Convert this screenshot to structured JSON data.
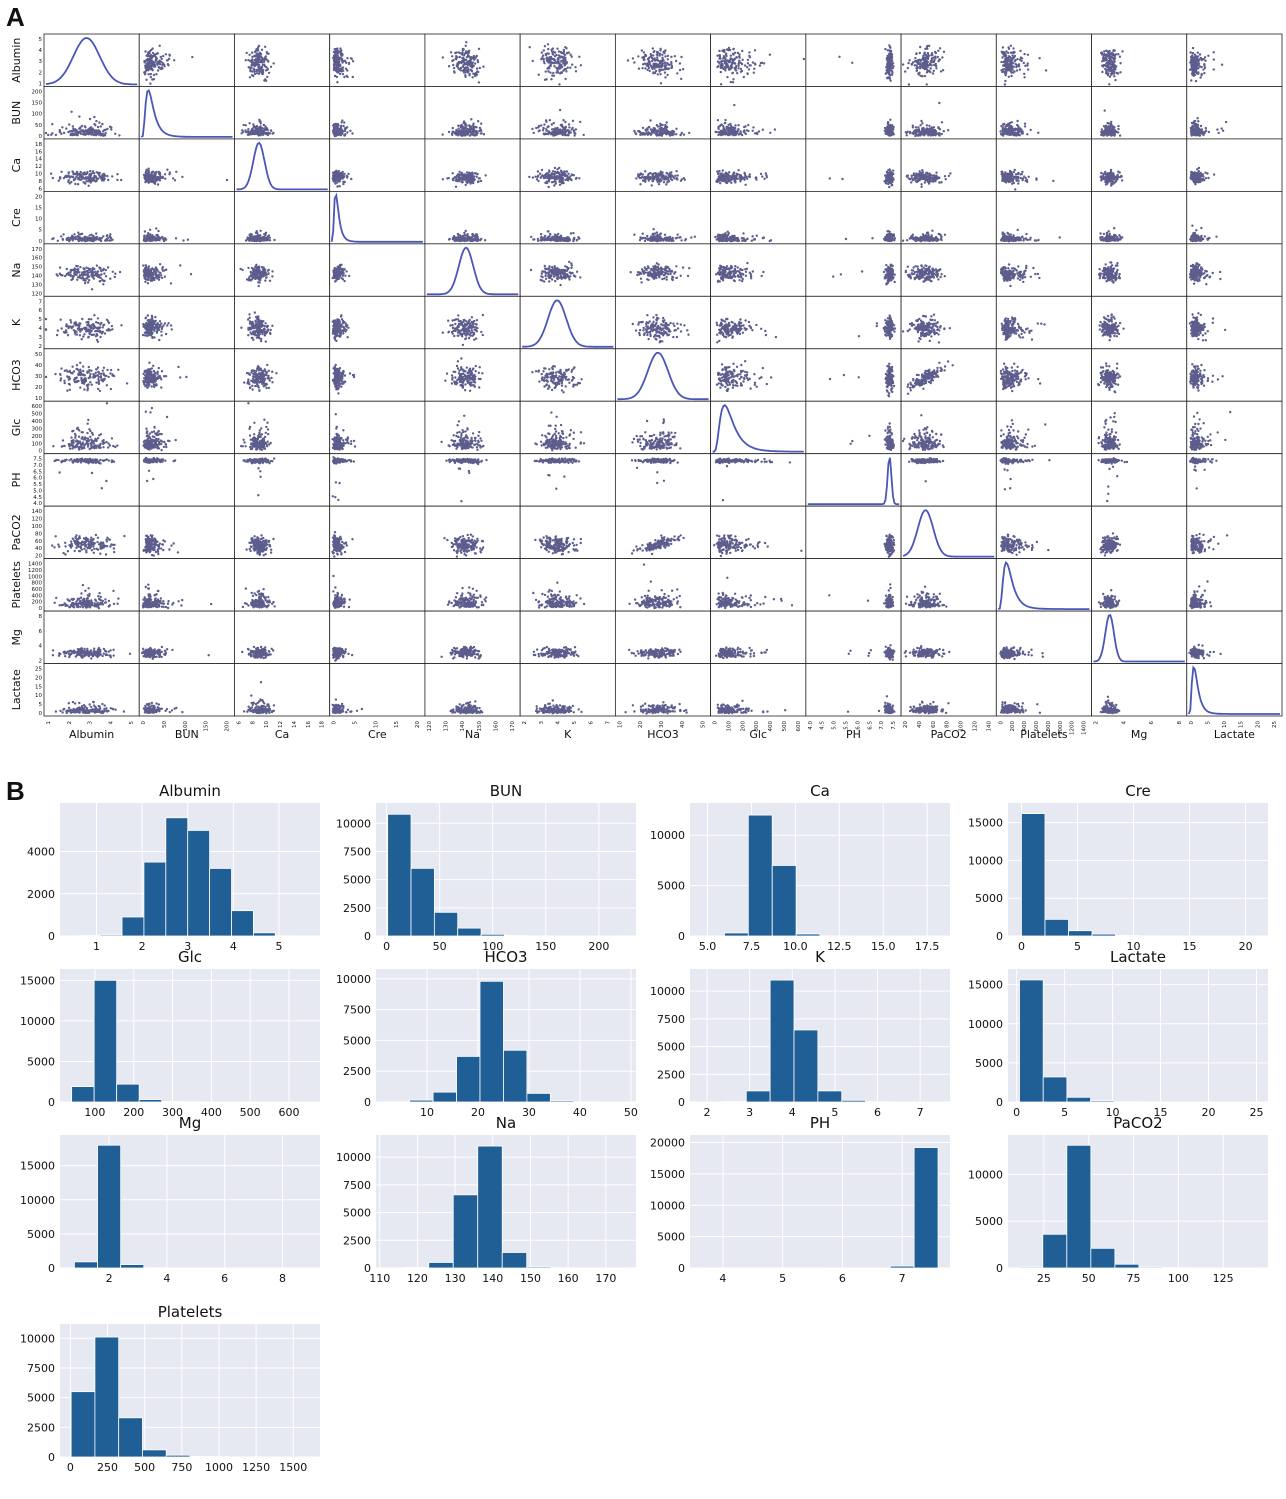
{
  "panels": {
    "a_label": "A",
    "b_label": "B"
  },
  "chart_data": [
    {
      "type": "scatter",
      "subtype": "scatter-matrix",
      "variables": [
        "Albumin",
        "BUN",
        "Ca",
        "Cre",
        "Na",
        "K",
        "HCO3",
        "Glc",
        "PH",
        "PaCO2",
        "Platelets",
        "Mg",
        "Lactate"
      ],
      "diagonal": "kde",
      "marker_color": "#1a1a5e",
      "kde_color": "#4a56b8",
      "ranges": {
        "Albumin": [
          1,
          5.5
        ],
        "BUN": [
          0,
          230
        ],
        "Ca": [
          5,
          18
        ],
        "Cre": [
          0,
          22
        ],
        "Na": [
          112,
          175
        ],
        "K": [
          1.8,
          7.8
        ],
        "HCO3": [
          5,
          50
        ],
        "Glc": [
          0,
          650
        ],
        "PH": [
          3.8,
          7.8
        ],
        "PaCO2": [
          10,
          140
        ],
        "Platelets": [
          0,
          1600
        ],
        "Mg": [
          0.5,
          9
        ],
        "Lactate": [
          0,
          25
        ]
      },
      "means": {
        "Albumin": 3.0,
        "BUN": 28,
        "Ca": 8.2,
        "Cre": 1.5,
        "Na": 139,
        "K": 4.1,
        "HCO3": 25,
        "Glc": 135,
        "PH": 7.38,
        "PaCO2": 42,
        "Platelets": 220,
        "Mg": 2.0,
        "Lactate": 2.2
      },
      "sds": {
        "Albumin": 0.65,
        "BUN": 22,
        "Ca": 0.8,
        "Cre": 1.5,
        "Na": 5,
        "K": 0.6,
        "HCO3": 5,
        "Glc": 60,
        "PH": 0.08,
        "PaCO2": 11,
        "Platelets": 120,
        "Mg": 0.4,
        "Lactate": 2.2
      },
      "skewed": [
        "BUN",
        "Cre",
        "Glc",
        "Platelets",
        "Lactate"
      ],
      "y_ticks": {
        "Albumin": [
          "1",
          "2",
          "3",
          "4",
          "5"
        ],
        "BUN": [
          "0",
          "50",
          "100",
          "150",
          "200"
        ],
        "Ca": [
          "6",
          "8",
          "10",
          "12",
          "14",
          "16",
          "18"
        ],
        "Cre": [
          "0",
          "5",
          "10",
          "15",
          "20"
        ],
        "Na": [
          "120",
          "130",
          "140",
          "150",
          "160",
          "170"
        ],
        "K": [
          "2",
          "3",
          "4",
          "5",
          "6",
          "7"
        ],
        "HCO3": [
          "10",
          "20",
          "30",
          "40",
          "50"
        ],
        "Glc": [
          "0",
          "100",
          "200",
          "300",
          "400",
          "500",
          "600"
        ],
        "PH": [
          "4.0",
          "4.5",
          "5.0",
          "5.5",
          "6.0",
          "6.5",
          "7.0",
          "7.5"
        ],
        "PaCO2": [
          "20",
          "40",
          "60",
          "80",
          "100",
          "120",
          "140"
        ],
        "Platelets": [
          "0",
          "200",
          "400",
          "600",
          "800",
          "1000",
          "1200",
          "1400"
        ],
        "Mg": [
          "2",
          "4",
          "6",
          "8"
        ],
        "Lactate": [
          "0",
          "5",
          "10",
          "15",
          "20",
          "25"
        ]
      },
      "x_ticks": {
        "Albumin": [
          "1",
          "2",
          "3",
          "4",
          "5"
        ],
        "BUN": [
          "0",
          "50",
          "100",
          "150",
          "200"
        ],
        "Ca": [
          "6",
          "8",
          "10",
          "12",
          "14",
          "16",
          "18"
        ],
        "Cre": [
          "0",
          "5",
          "10",
          "15",
          "20"
        ],
        "Na": [
          "120",
          "130",
          "140",
          "150",
          "160",
          "170"
        ],
        "K": [
          "2",
          "3",
          "4",
          "5",
          "6",
          "7"
        ],
        "HCO3": [
          "10",
          "20",
          "30",
          "40",
          "50"
        ],
        "Glc": [
          "0",
          "100",
          "200",
          "300",
          "400",
          "500",
          "600"
        ],
        "PH": [
          "4.0",
          "4.5",
          "5.0",
          "5.5",
          "6.0",
          "6.5",
          "7.0",
          "7.5"
        ],
        "PaCO2": [
          "20",
          "40",
          "60",
          "80",
          "100",
          "120",
          "140"
        ],
        "Platelets": [
          "0",
          "200",
          "400",
          "600",
          "800",
          "1000",
          "1200",
          "1400"
        ],
        "Mg": [
          "2",
          "4",
          "6",
          "8"
        ],
        "Lactate": [
          "0",
          "5",
          "10",
          "15",
          "20",
          "25"
        ]
      }
    },
    {
      "type": "bar",
      "subtype": "histogram",
      "title": "Albumin",
      "bins": [
        0.6,
        1.08,
        1.56,
        2.04,
        2.52,
        3.0,
        3.48,
        3.96,
        4.44,
        4.92,
        5.4
      ],
      "counts": [
        20,
        50,
        900,
        3500,
        5600,
        5000,
        3200,
        1200,
        150,
        10
      ],
      "xlim": [
        0.2,
        5.9
      ],
      "xticks": [
        1,
        2,
        3,
        4,
        5
      ],
      "xticklabels": [
        "1",
        "2",
        "3",
        "4",
        "5"
      ],
      "ylim": [
        0,
        6300
      ],
      "yticks": [
        0,
        2000,
        4000
      ],
      "yticklabels": [
        "0",
        "2000",
        "4000"
      ]
    },
    {
      "type": "bar",
      "subtype": "histogram",
      "title": "BUN",
      "bins": [
        1,
        23,
        45,
        67,
        89,
        111,
        133,
        155,
        177,
        199,
        221
      ],
      "counts": [
        10800,
        6000,
        2100,
        700,
        150,
        50,
        15,
        5,
        3,
        2
      ],
      "xlim": [
        -10,
        235
      ],
      "xticks": [
        0,
        50,
        100,
        150,
        200
      ],
      "xticklabels": [
        "0",
        "50",
        "100",
        "150",
        "200"
      ],
      "ylim": [
        0,
        11800
      ],
      "yticks": [
        0,
        2500,
        5000,
        7500,
        10000
      ],
      "yticklabels": [
        "0",
        "2500",
        "5000",
        "7500",
        "10000"
      ]
    },
    {
      "type": "bar",
      "subtype": "histogram",
      "title": "Ca",
      "bins": [
        4.6,
        5.96,
        7.32,
        8.68,
        10.04,
        11.4,
        12.76,
        14.12,
        15.48,
        16.84,
        18.2
      ],
      "counts": [
        10,
        300,
        12000,
        7000,
        200,
        20,
        5,
        3,
        2,
        1
      ],
      "xlim": [
        4,
        18.8
      ],
      "xticks": [
        5,
        7.5,
        10,
        12.5,
        15,
        17.5
      ],
      "xticklabels": [
        "5.0",
        "7.5",
        "10.0",
        "12.5",
        "15.0",
        "17.5"
      ],
      "ylim": [
        0,
        13200
      ],
      "yticks": [
        0,
        5000,
        10000
      ],
      "yticklabels": [
        "0",
        "5000",
        "10000"
      ]
    },
    {
      "type": "bar",
      "subtype": "histogram",
      "title": "Cre",
      "bins": [
        0,
        2.1,
        4.2,
        6.3,
        8.4,
        10.5,
        12.6,
        14.7,
        16.8,
        18.9,
        21
      ],
      "counts": [
        16200,
        2200,
        700,
        250,
        80,
        30,
        15,
        8,
        4,
        2
      ],
      "xlim": [
        -1.2,
        22
      ],
      "xticks": [
        0,
        5,
        10,
        15,
        20
      ],
      "xticklabels": [
        "0",
        "5",
        "10",
        "15",
        "20"
      ],
      "ylim": [
        0,
        17600
      ],
      "yticks": [
        0,
        5000,
        10000,
        15000
      ],
      "yticklabels": [
        "0",
        "5000",
        "10000",
        "15000"
      ]
    },
    {
      "type": "bar",
      "subtype": "histogram",
      "title": "Glc",
      "bins": [
        40,
        98,
        156,
        214,
        272,
        330,
        388,
        446,
        504,
        562,
        620
      ],
      "counts": [
        1900,
        15000,
        2200,
        300,
        80,
        30,
        15,
        8,
        4,
        2
      ],
      "xlim": [
        10,
        680
      ],
      "xticks": [
        100,
        200,
        300,
        400,
        500,
        600
      ],
      "xticklabels": [
        "100",
        "200",
        "300",
        "400",
        "500",
        "600"
      ],
      "ylim": [
        0,
        16400
      ],
      "yticks": [
        0,
        5000,
        10000,
        15000
      ],
      "yticklabels": [
        "0",
        "5000",
        "10000",
        "15000"
      ]
    },
    {
      "type": "bar",
      "subtype": "histogram",
      "title": "HCO3",
      "bins": [
        2,
        6.6,
        11.2,
        15.8,
        20.4,
        25,
        29.6,
        34.2,
        38.8,
        43.4,
        48
      ],
      "counts": [
        20,
        150,
        800,
        3700,
        9800,
        4200,
        700,
        100,
        20,
        5
      ],
      "xlim": [
        0,
        51
      ],
      "xticks": [
        10,
        20,
        30,
        40,
        50
      ],
      "xticklabels": [
        "10",
        "20",
        "30",
        "40",
        "50"
      ],
      "ylim": [
        0,
        10800
      ],
      "yticks": [
        0,
        2500,
        5000,
        7500,
        10000
      ],
      "yticklabels": [
        "0",
        "2500",
        "5000",
        "7500",
        "10000"
      ]
    },
    {
      "type": "bar",
      "subtype": "histogram",
      "title": "K",
      "bins": [
        1.8,
        2.36,
        2.92,
        3.48,
        4.04,
        4.6,
        5.16,
        5.72,
        6.28,
        6.84,
        7.4
      ],
      "counts": [
        5,
        50,
        1000,
        11000,
        6500,
        1000,
        150,
        30,
        10,
        5
      ],
      "xlim": [
        1.6,
        7.7
      ],
      "xticks": [
        2,
        3,
        4,
        5,
        6,
        7
      ],
      "xticklabels": [
        "2",
        "3",
        "4",
        "5",
        "6",
        "7"
      ],
      "ylim": [
        0,
        12000
      ],
      "yticks": [
        0,
        2500,
        5000,
        7500,
        10000
      ],
      "yticklabels": [
        "0",
        "2500",
        "5000",
        "7500",
        "10000"
      ]
    },
    {
      "type": "bar",
      "subtype": "histogram",
      "title": "Lactate",
      "bins": [
        0.3,
        2.77,
        5.24,
        7.71,
        10.18,
        12.65,
        15.12,
        17.59,
        20.06,
        22.53,
        25
      ],
      "counts": [
        15600,
        3200,
        600,
        150,
        50,
        20,
        10,
        5,
        3,
        2
      ],
      "xlim": [
        -0.9,
        26.2
      ],
      "xticks": [
        0,
        5,
        10,
        15,
        20,
        25
      ],
      "xticklabels": [
        "0",
        "5",
        "10",
        "15",
        "20",
        "25"
      ],
      "ylim": [
        0,
        17000
      ],
      "yticks": [
        0,
        5000,
        10000,
        15000
      ],
      "yticklabels": [
        "0",
        "5000",
        "10000",
        "15000"
      ]
    },
    {
      "type": "bar",
      "subtype": "histogram",
      "title": "Mg",
      "bins": [
        0.8,
        1.6,
        2.4,
        3.2,
        4.0,
        4.8,
        5.6,
        6.4,
        7.2,
        8.0,
        8.8
      ],
      "counts": [
        900,
        18000,
        500,
        40,
        10,
        5,
        3,
        2,
        1,
        1
      ],
      "xlim": [
        0.3,
        9.3
      ],
      "xticks": [
        2,
        4,
        6,
        8
      ],
      "xticklabels": [
        "2",
        "4",
        "6",
        "8"
      ],
      "ylim": [
        0,
        19500
      ],
      "yticks": [
        0,
        5000,
        10000,
        15000
      ],
      "yticklabels": [
        "0",
        "5000",
        "10000",
        "15000"
      ]
    },
    {
      "type": "bar",
      "subtype": "histogram",
      "title": "Na",
      "bins": [
        110,
        116.5,
        123,
        129.5,
        136,
        142.5,
        149,
        155.5,
        162,
        168.5,
        175
      ],
      "counts": [
        10,
        50,
        500,
        6600,
        11000,
        1400,
        100,
        20,
        5,
        2
      ],
      "xlim": [
        109,
        178
      ],
      "xticks": [
        110,
        120,
        130,
        140,
        150,
        160,
        170
      ],
      "xticklabels": [
        "110",
        "120",
        "130",
        "140",
        "150",
        "160",
        "170"
      ],
      "ylim": [
        0,
        12000
      ],
      "yticks": [
        0,
        2500,
        5000,
        7500,
        10000
      ],
      "yticklabels": [
        "0",
        "2500",
        "5000",
        "7500",
        "10000"
      ]
    },
    {
      "type": "bar",
      "subtype": "histogram",
      "title": "PH",
      "bins": [
        3.6,
        4.0,
        4.4,
        4.8,
        5.2,
        5.6,
        6.0,
        6.4,
        6.8,
        7.2,
        7.6
      ],
      "counts": [
        3,
        2,
        2,
        1,
        2,
        3,
        5,
        10,
        300,
        19200
      ],
      "xlim": [
        3.45,
        7.8
      ],
      "xticks": [
        4,
        5,
        6,
        7
      ],
      "xticklabels": [
        "4",
        "5",
        "6",
        "7"
      ],
      "ylim": [
        0,
        21200
      ],
      "yticks": [
        0,
        5000,
        10000,
        15000,
        20000
      ],
      "yticklabels": [
        "0",
        "5000",
        "10000",
        "15000",
        "20000"
      ]
    },
    {
      "type": "bar",
      "subtype": "histogram",
      "title": "PaCO2",
      "bins": [
        11,
        24.4,
        37.8,
        51.2,
        64.6,
        78,
        91.4,
        104.8,
        118.2,
        131.6,
        145
      ],
      "counts": [
        100,
        3600,
        13100,
        2100,
        400,
        100,
        40,
        15,
        8,
        4
      ],
      "xlim": [
        5,
        150
      ],
      "xticks": [
        25,
        50,
        75,
        100,
        125
      ],
      "xticklabels": [
        "25",
        "50",
        "75",
        "100",
        "125"
      ],
      "ylim": [
        0,
        14200
      ],
      "yticks": [
        0,
        5000,
        10000
      ],
      "yticklabels": [
        "0",
        "5000",
        "10000"
      ]
    },
    {
      "type": "bar",
      "subtype": "histogram",
      "title": "Platelets",
      "bins": [
        5,
        165,
        325,
        485,
        645,
        805,
        965,
        1125,
        1285,
        1445,
        1605
      ],
      "counts": [
        5500,
        10100,
        3300,
        600,
        150,
        50,
        20,
        10,
        5,
        3
      ],
      "xlim": [
        -70,
        1680
      ],
      "xticks": [
        0,
        250,
        500,
        750,
        1000,
        1250,
        1500
      ],
      "xticklabels": [
        "0",
        "250",
        "500",
        "750",
        "1000",
        "1250",
        "1500"
      ],
      "ylim": [
        0,
        11200
      ],
      "yticks": [
        0,
        2500,
        5000,
        7500,
        10000
      ],
      "yticklabels": [
        "0",
        "2500",
        "5000",
        "7500",
        "10000"
      ]
    }
  ],
  "colors": {
    "bar_fill": "#1f5f95",
    "bar_edge": "#ffffff",
    "plot_bg": "#e6e8f2",
    "grid": "#ffffff",
    "text": "#111111"
  }
}
